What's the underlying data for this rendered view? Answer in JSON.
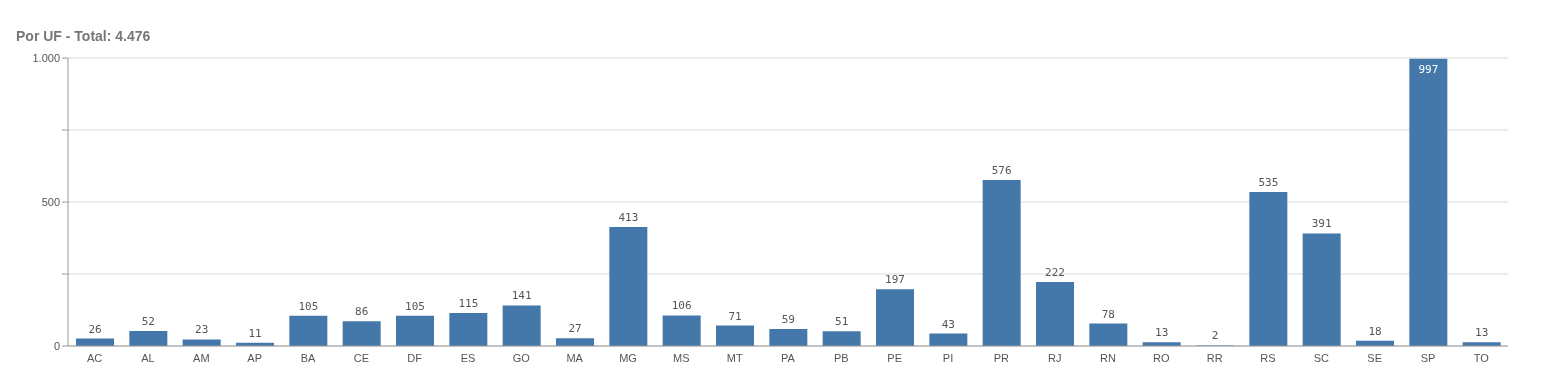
{
  "chart_data": {
    "type": "bar",
    "title": "Por UF - Total: 4.476",
    "categories": [
      "AC",
      "AL",
      "AM",
      "AP",
      "BA",
      "CE",
      "DF",
      "ES",
      "GO",
      "MA",
      "MG",
      "MS",
      "MT",
      "PA",
      "PB",
      "PE",
      "PI",
      "PR",
      "RJ",
      "RN",
      "RO",
      "RR",
      "RS",
      "SC",
      "SE",
      "SP",
      "TO"
    ],
    "values": [
      26,
      52,
      23,
      11,
      105,
      86,
      105,
      115,
      141,
      27,
      413,
      106,
      71,
      59,
      51,
      197,
      43,
      576,
      222,
      78,
      13,
      2,
      535,
      391,
      18,
      997,
      13
    ],
    "color": "#4477aa",
    "ylim": [
      0,
      1000
    ],
    "yticks": [
      0,
      {
        "value": 250,
        "label": null
      },
      500,
      {
        "value": 750,
        "label": null
      },
      {
        "value": 1000,
        "label": "1.000"
      }
    ],
    "grid": "y",
    "data_labels": true
  }
}
